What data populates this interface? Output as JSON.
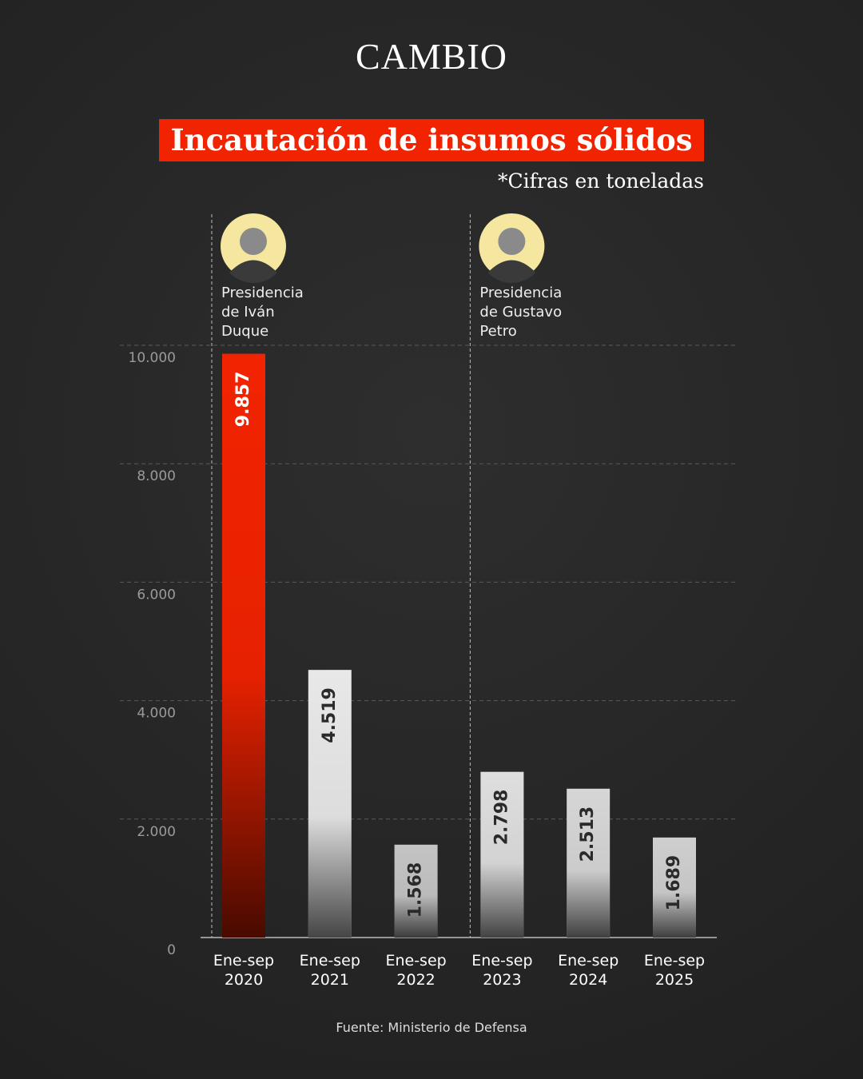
{
  "header": {
    "logo": "CAMBIO"
  },
  "chart_data": {
    "type": "bar",
    "title": "Incautación de insumos sólidos",
    "subtitle": "*Cifras en toneladas",
    "categories": [
      "Ene-sep 2020",
      "Ene-sep 2021",
      "Ene-sep 2022",
      "Ene-sep 2023",
      "Ene-sep 2024",
      "Ene-sep 2025"
    ],
    "values": [
      9857,
      4519,
      1568,
      2798,
      2513,
      1689
    ],
    "value_labels": [
      "9.857",
      "4.519",
      "1.568",
      "2.798",
      "2.513",
      "1.689"
    ],
    "colors": [
      "#f22300",
      "#e8e8e8",
      "#c4c4c4",
      "#dedede",
      "#d6d6d6",
      "#cfcfcf"
    ],
    "ylim": [
      0,
      10000
    ],
    "yticks": [
      0,
      {
        "value": 2000,
        "label": "2.000"
      },
      {
        "value": 4000,
        "label": "4.000"
      },
      {
        "value": 6000,
        "label": "6.000"
      },
      {
        "value": 8000,
        "label": "8.000"
      },
      {
        "value": 10000,
        "label": "10.000"
      }
    ],
    "grid": true,
    "annotations": [
      {
        "text": "Presidencia de Iván Duque",
        "category": 0
      },
      {
        "text": "Presidencia de Gustavo Petro",
        "category": 3
      }
    ],
    "source": "Fuente: Ministerio de Defensa"
  }
}
